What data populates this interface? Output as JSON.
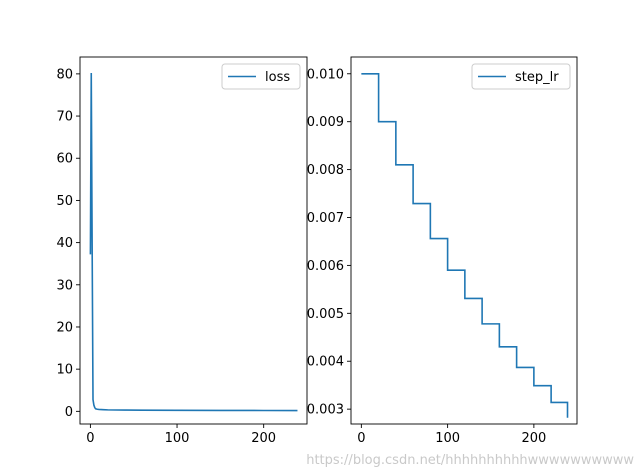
{
  "watermark": "https://blog.csdn.net/hhhhhhhhhhwwwwwwwwww",
  "colors": {
    "series": "#1f77b4",
    "axes": "#000000",
    "legend_border": "#cccccc"
  },
  "chart_data": [
    {
      "type": "line",
      "legend_position": "top-right",
      "grid": false,
      "xlim": [
        -12,
        250
      ],
      "ylim": [
        -3,
        84
      ],
      "xticks": [
        0,
        100,
        200
      ],
      "yticks": [
        0,
        10,
        20,
        30,
        40,
        50,
        60,
        70,
        80
      ],
      "ytick_labels": [
        "0",
        "10",
        "20",
        "30",
        "40",
        "50",
        "60",
        "70",
        "80"
      ],
      "series": [
        {
          "name": "loss",
          "x": [
            0,
            1,
            2,
            3,
            4,
            5,
            6,
            8,
            10,
            15,
            20,
            40,
            60,
            100,
            150,
            200,
            239
          ],
          "y": [
            37.2,
            80.2,
            40.0,
            2.8,
            1.5,
            0.9,
            0.6,
            0.5,
            0.45,
            0.4,
            0.35,
            0.3,
            0.28,
            0.25,
            0.22,
            0.2,
            0.18
          ]
        }
      ]
    },
    {
      "type": "line",
      "legend_position": "top-right",
      "grid": false,
      "xlim": [
        -12,
        250
      ],
      "ylim": [
        0.00269,
        0.01035
      ],
      "xticks": [
        0,
        100,
        200
      ],
      "yticks": [
        0.003,
        0.004,
        0.005,
        0.006,
        0.007,
        0.008,
        0.009,
        0.01
      ],
      "ytick_labels": [
        "0.003",
        "0.004",
        "0.005",
        "0.006",
        "0.007",
        "0.008",
        "0.009",
        "0.010"
      ],
      "series": [
        {
          "name": "step_lr",
          "step": true,
          "x": [
            0,
            20,
            40,
            60,
            80,
            100,
            120,
            140,
            160,
            180,
            200,
            220,
            239
          ],
          "y": [
            0.01,
            0.009,
            0.0081,
            0.00729,
            0.00656,
            0.0059,
            0.00531,
            0.00478,
            0.0043,
            0.00387,
            0.00349,
            0.00314,
            0.00282
          ]
        }
      ]
    }
  ]
}
